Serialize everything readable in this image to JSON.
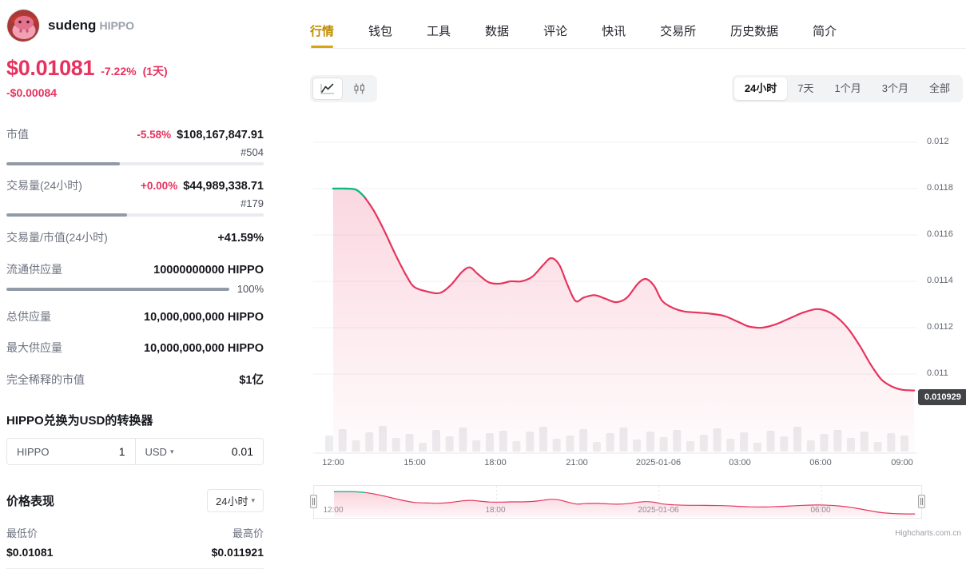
{
  "coin": {
    "name": "sudeng",
    "symbol": "HIPPO"
  },
  "price": {
    "current": "$0.01081",
    "change_pct": "-7.22%",
    "change_period": "(1天)",
    "change_abs": "-$0.00084"
  },
  "stats": [
    {
      "label": "市值",
      "change": "-5.58%",
      "value": "$108,167,847.91",
      "rank": "#504",
      "bar_pct": 44
    },
    {
      "label": "交易量(24小时)",
      "change": "+0.00%",
      "value": "$44,989,338.71",
      "rank": "#179",
      "bar_pct": 47
    },
    {
      "label": "交易量/市值(24小时)",
      "value": "+41.59%"
    },
    {
      "label": "流通供应量",
      "value": "10000000000 HIPPO",
      "sub": "100%",
      "bar_pct": 100
    },
    {
      "label": "总供应量",
      "value": "10,000,000,000 HIPPO"
    },
    {
      "label": "最大供应量",
      "value": "10,000,000,000 HIPPO"
    },
    {
      "label": "完全稀释的市值",
      "value": "$1亿"
    }
  ],
  "converter": {
    "title": "HIPPO兑换为USD的转换器",
    "from_label": "HIPPO",
    "from_value": "1",
    "to_label": "USD",
    "to_value": "0.01"
  },
  "performance": {
    "title": "价格表现",
    "period": "24小时",
    "low_label": "最低价",
    "low_value": "$0.01081",
    "high_label": "最高价",
    "high_value": "$0.011921"
  },
  "tabs": [
    "行情",
    "钱包",
    "工具",
    "数据",
    "评论",
    "快讯",
    "交易所",
    "历史数据",
    "简介"
  ],
  "toolbar": {
    "ranges": [
      "24小时",
      "7天",
      "1个月",
      "3个月",
      "全部"
    ],
    "active_range": "24小时"
  },
  "chart_data": {
    "type": "area",
    "pair": "HIPPO/USD",
    "active_period": "24小时",
    "ylim": [
      0.0109,
      0.012
    ],
    "green_end_index": 3,
    "last_label": "0.010929",
    "colors": {
      "line": "#e6355e",
      "green": "#10b981",
      "fill_top": "rgba(232,58,100,0.20)",
      "fill_bottom": "rgba(232,58,100,0.015)"
    },
    "y_ticks": [
      {
        "v": 0.012,
        "label": "0.012"
      },
      {
        "v": 0.0118,
        "label": "0.0118"
      },
      {
        "v": 0.0116,
        "label": "0.0116"
      },
      {
        "v": 0.0114,
        "label": "0.0114"
      },
      {
        "v": 0.0112,
        "label": "0.0112"
      },
      {
        "v": 0.011,
        "label": "0.011"
      }
    ],
    "x_ticks": [
      {
        "h": 0,
        "label": "12:00"
      },
      {
        "h": 3,
        "label": "15:00"
      },
      {
        "h": 6,
        "label": "18:00"
      },
      {
        "h": 9,
        "label": "21:00"
      },
      {
        "h": 12,
        "label": "2025-01-06"
      },
      {
        "h": 15,
        "label": "03:00"
      },
      {
        "h": 18,
        "label": "06:00"
      },
      {
        "h": 21,
        "label": "09:00"
      }
    ],
    "nav_ticks": [
      {
        "h": 0,
        "label": "12:00"
      },
      {
        "h": 6,
        "label": "18:00"
      },
      {
        "h": 12,
        "label": "2025-01-06"
      },
      {
        "h": 18,
        "label": "06:00"
      }
    ],
    "points": [
      [
        0,
        0.0118
      ],
      [
        0.45,
        0.0118
      ],
      [
        0.85,
        0.011795
      ],
      [
        1.15,
        0.011765
      ],
      [
        1.5,
        0.011705
      ],
      [
        1.9,
        0.011615
      ],
      [
        2.3,
        0.011515
      ],
      [
        2.7,
        0.011425
      ],
      [
        3.0,
        0.011375
      ],
      [
        3.5,
        0.011355
      ],
      [
        3.95,
        0.01135
      ],
      [
        4.35,
        0.011385
      ],
      [
        4.75,
        0.01144
      ],
      [
        5.05,
        0.01146
      ],
      [
        5.35,
        0.01143
      ],
      [
        5.75,
        0.011395
      ],
      [
        6.15,
        0.01139
      ],
      [
        6.55,
        0.0114
      ],
      [
        6.95,
        0.0114
      ],
      [
        7.35,
        0.01142
      ],
      [
        7.75,
        0.01147
      ],
      [
        8.05,
        0.0115
      ],
      [
        8.35,
        0.01147
      ],
      [
        8.65,
        0.011385
      ],
      [
        8.95,
        0.011315
      ],
      [
        9.25,
        0.01133
      ],
      [
        9.65,
        0.01134
      ],
      [
        10.05,
        0.011325
      ],
      [
        10.45,
        0.01131
      ],
      [
        10.85,
        0.01133
      ],
      [
        11.25,
        0.01139
      ],
      [
        11.55,
        0.01141
      ],
      [
        11.85,
        0.01138
      ],
      [
        12.15,
        0.011315
      ],
      [
        12.55,
        0.011285
      ],
      [
        12.95,
        0.01127
      ],
      [
        13.45,
        0.011265
      ],
      [
        13.95,
        0.01126
      ],
      [
        14.45,
        0.01125
      ],
      [
        14.95,
        0.011225
      ],
      [
        15.35,
        0.011205
      ],
      [
        15.85,
        0.0112
      ],
      [
        16.35,
        0.011215
      ],
      [
        16.85,
        0.01124
      ],
      [
        17.35,
        0.011265
      ],
      [
        17.85,
        0.01128
      ],
      [
        18.25,
        0.01127
      ],
      [
        18.65,
        0.01124
      ],
      [
        19.05,
        0.01119
      ],
      [
        19.45,
        0.01112
      ],
      [
        19.85,
        0.01104
      ],
      [
        20.25,
        0.010975
      ],
      [
        20.65,
        0.010945
      ],
      [
        21.0,
        0.010932
      ],
      [
        21.45,
        0.010929
      ]
    ],
    "volume_heights": [
      20,
      28,
      14,
      24,
      32,
      17,
      22,
      11,
      27,
      19,
      30,
      14,
      23,
      26,
      13,
      25,
      31,
      16,
      20,
      28,
      12,
      23,
      30,
      15,
      25,
      18,
      27,
      13,
      21,
      29,
      16,
      24,
      11,
      26,
      19,
      31,
      14,
      22,
      27,
      17,
      25,
      12,
      23,
      20
    ]
  },
  "footer": {
    "watermark": "Highcharts.com.cn"
  }
}
